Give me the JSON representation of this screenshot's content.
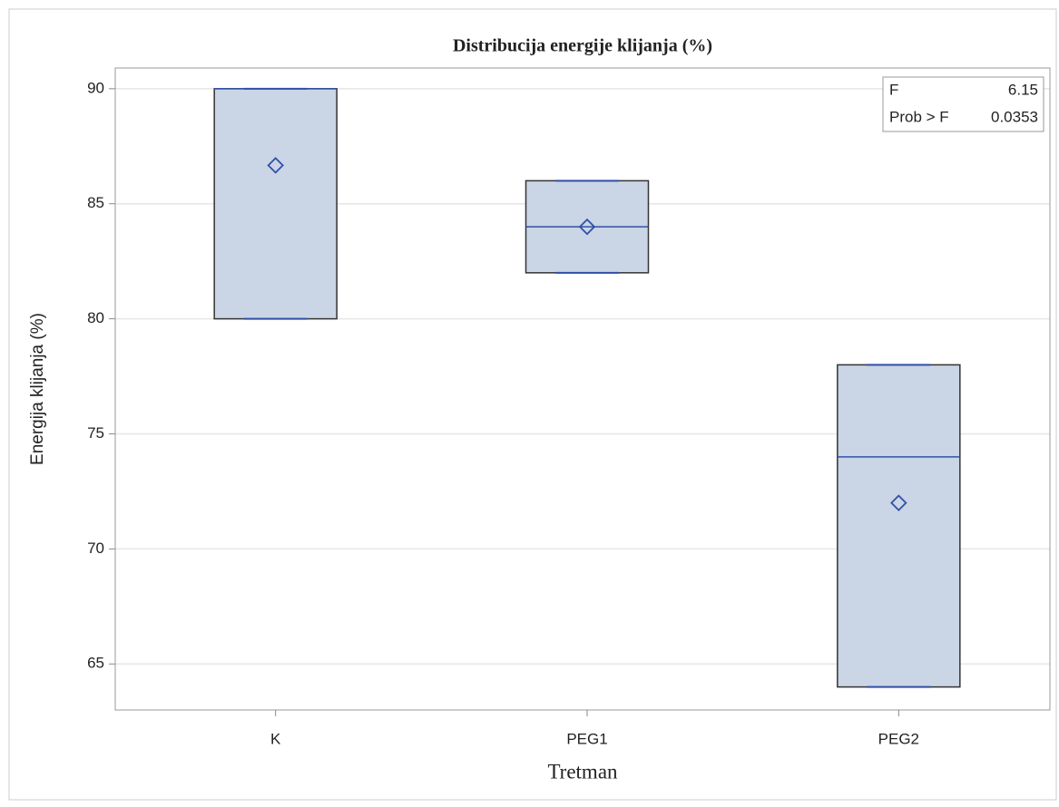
{
  "chart_data": {
    "type": "box",
    "title": "Distribucija energije klijanja (%)",
    "x_label": "Tretman",
    "y_label": "Energija klijanja (%)",
    "categories": [
      "K",
      "PEG1",
      "PEG2"
    ],
    "boxes": [
      {
        "min": 80,
        "q1": 80,
        "median": 90,
        "q3": 90,
        "max": 90,
        "mean": 86.67
      },
      {
        "min": 82,
        "q1": 82,
        "median": 84,
        "q3": 86,
        "max": 86,
        "mean": 84
      },
      {
        "min": 64,
        "q1": 64,
        "median": 74,
        "q3": 78,
        "max": 78,
        "mean": 72
      }
    ],
    "color": "#cad5e5",
    "line_color": "#3050a8",
    "ylim": [
      63,
      90.9
    ],
    "yticks": [
      65,
      70,
      75,
      80,
      85,
      90
    ],
    "grid": true,
    "inset": [
      [
        "F",
        "6.15"
      ],
      [
        "Prob > F",
        "0.0353"
      ]
    ]
  }
}
